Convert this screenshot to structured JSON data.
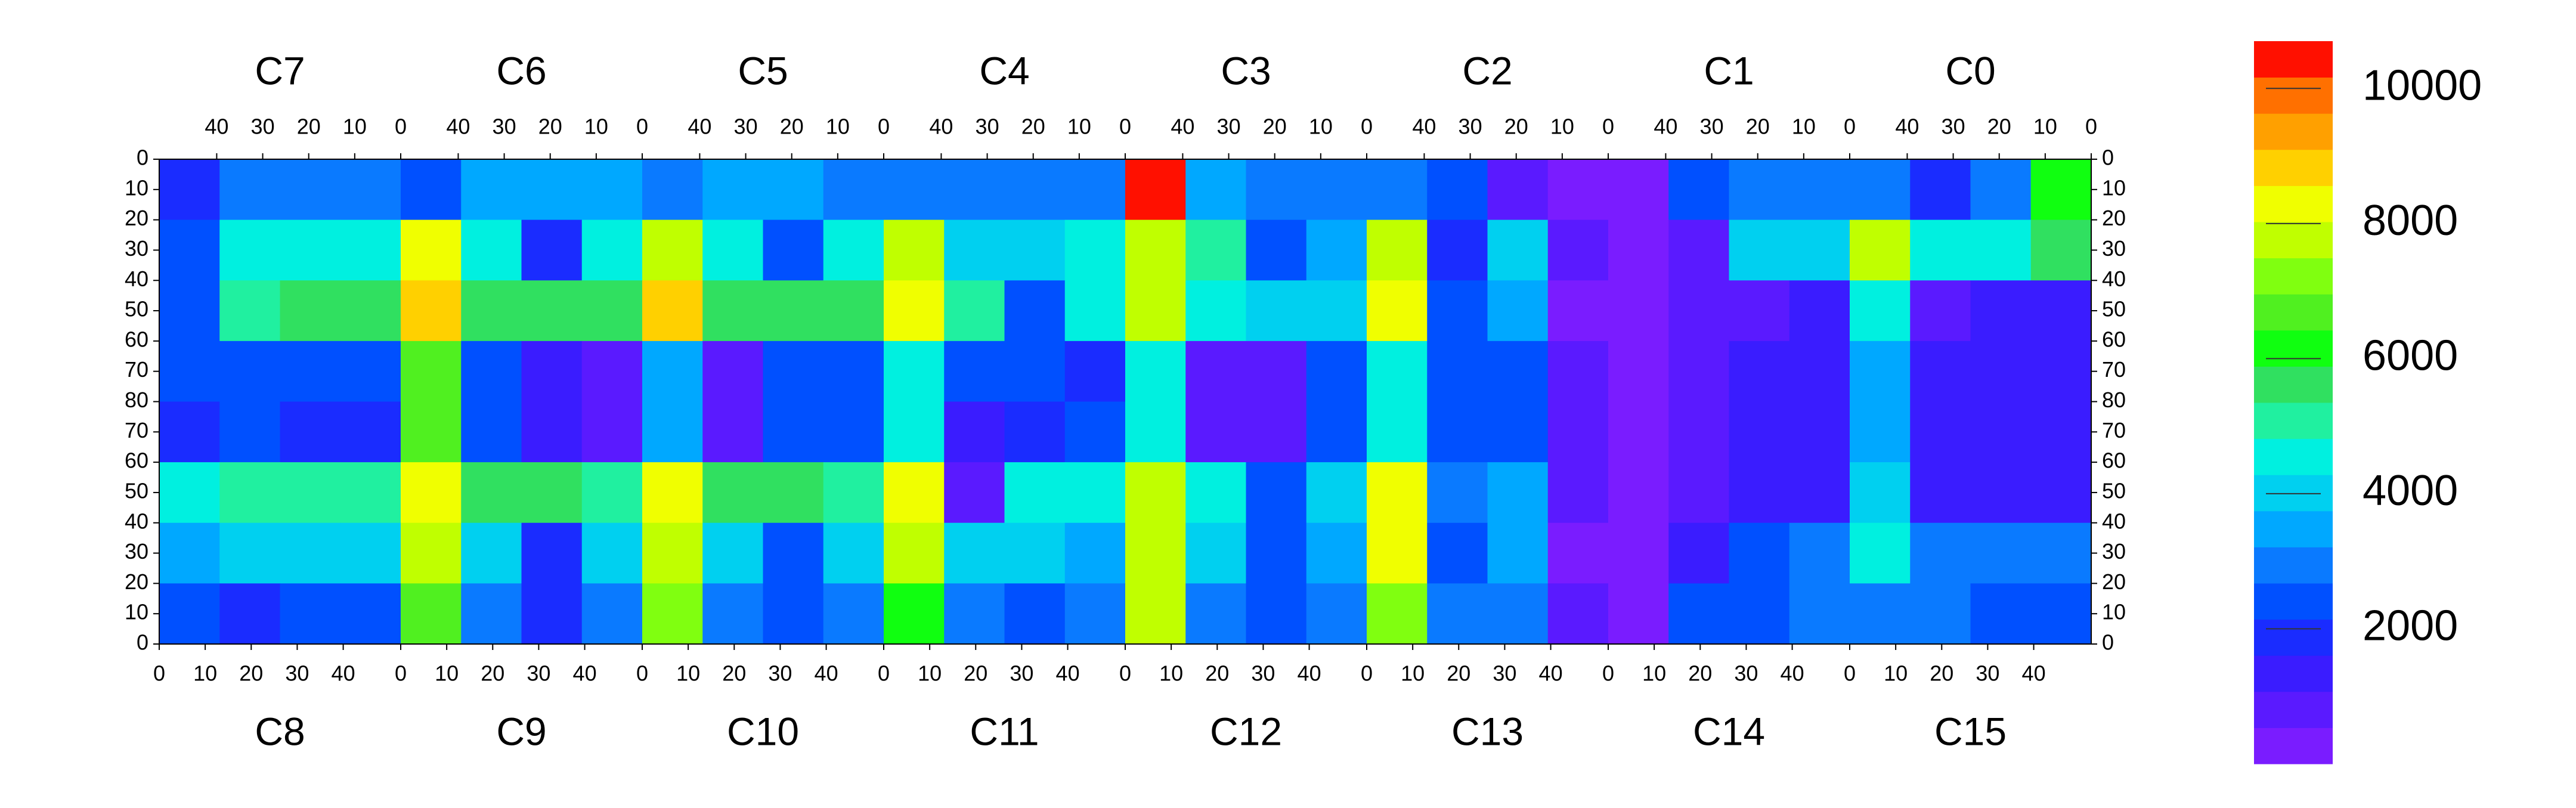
{
  "chart_data": {
    "type": "heatmap",
    "top_chips": [
      "C7",
      "C6",
      "C5",
      "C4",
      "C3",
      "C2",
      "C1",
      "C0"
    ],
    "bottom_chips": [
      "C8",
      "C9",
      "C10",
      "C11",
      "C12",
      "C13",
      "C14",
      "C15"
    ],
    "col_lim": [
      0,
      52.5
    ],
    "col_ticks": [
      0,
      10,
      20,
      30,
      40
    ],
    "row_lim": [
      0,
      80
    ],
    "row_ticks": [
      0,
      10,
      20,
      30,
      40,
      50,
      60,
      70,
      80
    ],
    "zlim": [
      0,
      10700
    ],
    "zticks": [
      2000,
      4000,
      6000,
      8000,
      10000
    ],
    "colors": [
      "#7a1cff",
      "#5a1aff",
      "#3a1cff",
      "#1a2cff",
      "#0050ff",
      "#0a7aff",
      "#00a8ff",
      "#00d0f0",
      "#00f0e0",
      "#20f0a0",
      "#30e060",
      "#10ff10",
      "#50f020",
      "#80ff10",
      "#c0ff00",
      "#f0ff00",
      "#ffd000",
      "#ffa000",
      "#ff7000",
      "#ff1000"
    ],
    "rows": [
      [
        1800,
        3000,
        3200,
        3000,
        2200,
        3500,
        3400,
        3300,
        3000,
        3400,
        3300,
        3200,
        3000,
        3200,
        3100,
        3000,
        10500,
        3500,
        3000,
        2800,
        3000,
        2600,
        900,
        500,
        500,
        2500,
        3000,
        3200,
        3000,
        2000,
        2800,
        6000
      ],
      [
        2500,
        4500,
        4800,
        4600,
        8500,
        4800,
        2000,
        4600,
        7500,
        4700,
        2200,
        4500,
        8000,
        4200,
        4000,
        4300,
        8000,
        5000,
        2200,
        3500,
        8000,
        2000,
        3800,
        600,
        500,
        600,
        4000,
        4200,
        7500,
        4500,
        4800,
        5500
      ],
      [
        2500,
        5200,
        5600,
        5500,
        9000,
        5800,
        5600,
        5500,
        9000,
        5800,
        5700,
        5400,
        8500,
        5000,
        2500,
        4500,
        8000,
        4500,
        3800,
        4000,
        8500,
        2200,
        3500,
        500,
        500,
        600,
        1000,
        1200,
        4500,
        1000,
        1200,
        1300
      ],
      [
        2200,
        2200,
        2300,
        2200,
        6500,
        2500,
        1200,
        800,
        3500,
        900,
        2500,
        2400,
        4500,
        2200,
        2400,
        2000,
        4500,
        900,
        900,
        2200,
        4500,
        2200,
        2600,
        600,
        500,
        800,
        1200,
        1300,
        3500,
        1200,
        1300,
        1300
      ],
      [
        2000,
        2200,
        2100,
        2100,
        6500,
        2500,
        1200,
        800,
        3500,
        900,
        2400,
        2300,
        4500,
        1200,
        2000,
        2200,
        4500,
        900,
        900,
        2200,
        4500,
        2300,
        2500,
        600,
        500,
        800,
        1200,
        1300,
        3500,
        1300,
        1200,
        1300
      ],
      [
        4500,
        5000,
        5200,
        5200,
        8500,
        5500,
        5400,
        5300,
        8500,
        5500,
        5400,
        5300,
        8500,
        1000,
        4500,
        4800,
        8000,
        4500,
        2500,
        4200,
        8500,
        3000,
        3500,
        600,
        500,
        700,
        1200,
        1300,
        4000,
        1200,
        1300,
        1200
      ],
      [
        3500,
        3800,
        4000,
        4200,
        8000,
        4000,
        2000,
        4200,
        7500,
        4200,
        2200,
        4000,
        7500,
        3800,
        4000,
        3500,
        8000,
        4200,
        2200,
        3600,
        8500,
        2200,
        3500,
        500,
        500,
        1200,
        2500,
        2800,
        4500,
        2800,
        3000,
        3200
      ],
      [
        2500,
        2000,
        2500,
        2300,
        6500,
        3000,
        1800,
        3000,
        7000,
        3200,
        2500,
        3000,
        6000,
        3000,
        2200,
        2800,
        7500,
        3000,
        2600,
        3000,
        7000,
        2800,
        3000,
        600,
        500,
        2200,
        2600,
        2800,
        3000,
        2800,
        2600,
        2600
      ]
    ]
  }
}
